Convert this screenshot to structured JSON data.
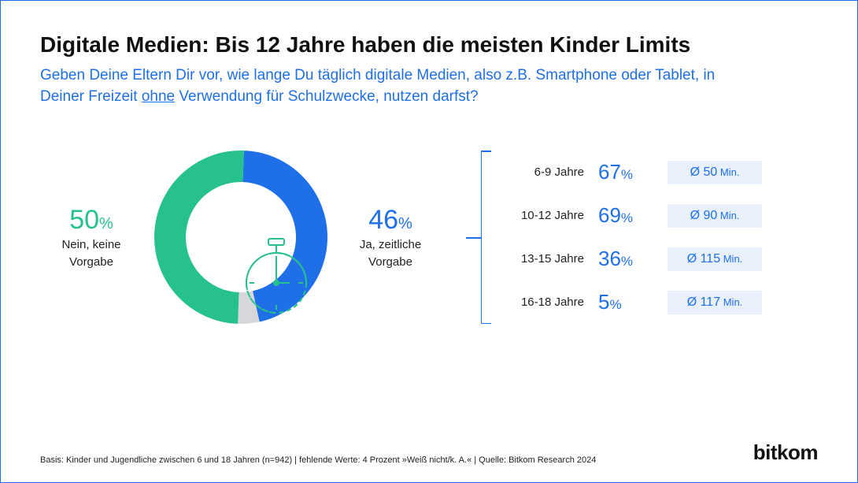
{
  "title": "Digitale Medien: Bis 12 Jahre haben die meisten Kinder Limits",
  "subtitle_pre": "Geben Deine Eltern Dir vor, wie lange Du täglich digitale Medien, also z.B. Smartphone oder Tablet, in Deiner Freizeit ",
  "subtitle_underline": "ohne",
  "subtitle_post": " Verwendung für Schulzwecke, nutzen darfst?",
  "colors": {
    "green": "#27c28b",
    "blue": "#1e6fe8",
    "grey": "#d5d7da",
    "box_bg": "#e8f0fc",
    "text": "#111111"
  },
  "donut": {
    "type": "donut",
    "values": [
      50,
      46,
      4
    ],
    "slice_colors": [
      "#27c28b",
      "#1e6fe8",
      "#d5d7da"
    ],
    "inner_radius": 70,
    "outer_radius": 110,
    "start_angle_deg": -8
  },
  "left_label": {
    "pct": "50",
    "sign": "%",
    "desc1": "Nein, keine",
    "desc2": "Vorgabe"
  },
  "right_label": {
    "pct": "46",
    "sign": "%",
    "desc1": "Ja, zeitliche",
    "desc2": "Vorgabe"
  },
  "rows": [
    {
      "age": "6-9 Jahre",
      "pct": "67",
      "min": "50"
    },
    {
      "age": "10-12 Jahre",
      "pct": "69",
      "min": "90"
    },
    {
      "age": "13-15 Jahre",
      "pct": "36",
      "min": "115"
    },
    {
      "age": "16-18 Jahre",
      "pct": "5",
      "min": "117"
    }
  ],
  "min_prefix": "Ø ",
  "min_suffix": " Min.",
  "footnote": "Basis: Kinder und Jugendliche zwischen 6 und 18 Jahren (n=942) | fehlende Werte: 4 Prozent »Weiß nicht/k. A.« | Quelle: Bitkom Research 2024",
  "logo": "bitkom"
}
